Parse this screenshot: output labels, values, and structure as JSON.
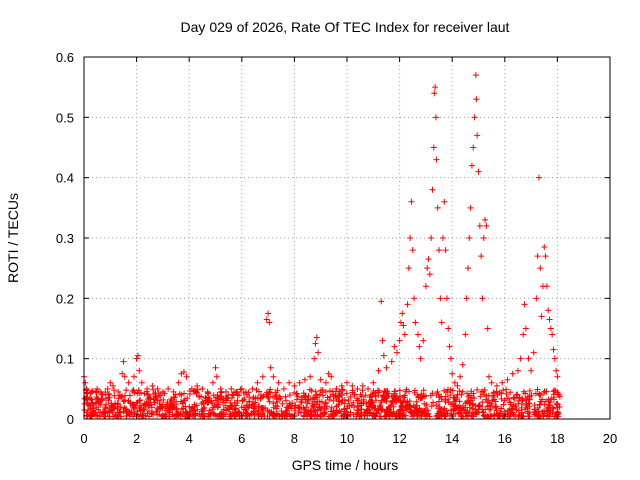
{
  "chart_data": {
    "type": "scatter",
    "title": "Day 029 of 2026, Rate Of TEC Index for receiver laut",
    "xlabel": "GPS time / hours",
    "ylabel": "ROTI / TECUs",
    "xlim": [
      0,
      20
    ],
    "ylim": [
      0,
      0.6
    ],
    "xticks": [
      "0",
      "2",
      "4",
      "6",
      "8",
      "10",
      "12",
      "14",
      "16",
      "18",
      "20"
    ],
    "yticks": [
      "0",
      "0.1",
      "0.2",
      "0.3",
      "0.4",
      "0.5",
      "0.6"
    ],
    "grid": true,
    "marker": "+",
    "color": "#ff0000",
    "series": [
      {
        "name": "ROTI",
        "points": [
          [
            0.0,
            0.07
          ],
          [
            0.05,
            0.06
          ],
          [
            0.1,
            0.05
          ],
          [
            0.3,
            0.045
          ],
          [
            0.5,
            0.05
          ],
          [
            0.7,
            0.04
          ],
          [
            0.9,
            0.05
          ],
          [
            1.0,
            0.06
          ],
          [
            1.1,
            0.055
          ],
          [
            1.3,
            0.045
          ],
          [
            1.45,
            0.075
          ],
          [
            1.5,
            0.095
          ],
          [
            1.55,
            0.07
          ],
          [
            1.7,
            0.06
          ],
          [
            1.9,
            0.07
          ],
          [
            2.0,
            0.1
          ],
          [
            2.05,
            0.105
          ],
          [
            2.1,
            0.08
          ],
          [
            2.2,
            0.06
          ],
          [
            2.4,
            0.05
          ],
          [
            2.6,
            0.055
          ],
          [
            2.8,
            0.05
          ],
          [
            3.0,
            0.045
          ],
          [
            3.2,
            0.05
          ],
          [
            3.4,
            0.045
          ],
          [
            3.6,
            0.06
          ],
          [
            3.7,
            0.075
          ],
          [
            3.8,
            0.078
          ],
          [
            3.9,
            0.07
          ],
          [
            4.1,
            0.05
          ],
          [
            4.3,
            0.055
          ],
          [
            4.5,
            0.05
          ],
          [
            4.7,
            0.045
          ],
          [
            4.9,
            0.06
          ],
          [
            5.0,
            0.085
          ],
          [
            5.05,
            0.07
          ],
          [
            5.2,
            0.05
          ],
          [
            5.4,
            0.045
          ],
          [
            5.6,
            0.05
          ],
          [
            5.8,
            0.045
          ],
          [
            6.0,
            0.05
          ],
          [
            6.2,
            0.04
          ],
          [
            6.4,
            0.05
          ],
          [
            6.6,
            0.06
          ],
          [
            6.8,
            0.07
          ],
          [
            6.95,
            0.165
          ],
          [
            7.0,
            0.175
          ],
          [
            7.05,
            0.16
          ],
          [
            7.1,
            0.085
          ],
          [
            7.2,
            0.07
          ],
          [
            7.4,
            0.06
          ],
          [
            7.6,
            0.05
          ],
          [
            7.8,
            0.06
          ],
          [
            8.0,
            0.055
          ],
          [
            8.2,
            0.06
          ],
          [
            8.4,
            0.065
          ],
          [
            8.6,
            0.07
          ],
          [
            8.75,
            0.1
          ],
          [
            8.8,
            0.125
          ],
          [
            8.85,
            0.135
          ],
          [
            8.9,
            0.11
          ],
          [
            9.0,
            0.065
          ],
          [
            9.2,
            0.06
          ],
          [
            9.3,
            0.075
          ],
          [
            9.4,
            0.07
          ],
          [
            9.6,
            0.05
          ],
          [
            9.8,
            0.055
          ],
          [
            10.0,
            0.06
          ],
          [
            10.2,
            0.055
          ],
          [
            10.4,
            0.05
          ],
          [
            10.6,
            0.055
          ],
          [
            10.8,
            0.05
          ],
          [
            11.0,
            0.06
          ],
          [
            11.2,
            0.08
          ],
          [
            11.3,
            0.195
          ],
          [
            11.35,
            0.13
          ],
          [
            11.4,
            0.105
          ],
          [
            11.5,
            0.085
          ],
          [
            11.7,
            0.095
          ],
          [
            11.8,
            0.12
          ],
          [
            11.9,
            0.11
          ],
          [
            12.0,
            0.13
          ],
          [
            12.05,
            0.16
          ],
          [
            12.1,
            0.175
          ],
          [
            12.15,
            0.155
          ],
          [
            12.2,
            0.14
          ],
          [
            12.3,
            0.19
          ],
          [
            12.35,
            0.25
          ],
          [
            12.4,
            0.3
          ],
          [
            12.45,
            0.36
          ],
          [
            12.5,
            0.28
          ],
          [
            12.55,
            0.2
          ],
          [
            12.6,
            0.16
          ],
          [
            12.7,
            0.14
          ],
          [
            12.75,
            0.12
          ],
          [
            12.8,
            0.1
          ],
          [
            12.9,
            0.13
          ],
          [
            13.0,
            0.22
          ],
          [
            13.05,
            0.25
          ],
          [
            13.1,
            0.265
          ],
          [
            13.15,
            0.24
          ],
          [
            13.2,
            0.3
          ],
          [
            13.25,
            0.38
          ],
          [
            13.3,
            0.45
          ],
          [
            13.32,
            0.54
          ],
          [
            13.35,
            0.55
          ],
          [
            13.38,
            0.5
          ],
          [
            13.4,
            0.43
          ],
          [
            13.45,
            0.35
          ],
          [
            13.5,
            0.28
          ],
          [
            13.55,
            0.2
          ],
          [
            13.6,
            0.16
          ],
          [
            13.65,
            0.3
          ],
          [
            13.7,
            0.36
          ],
          [
            13.75,
            0.28
          ],
          [
            13.8,
            0.2
          ],
          [
            13.85,
            0.15
          ],
          [
            13.9,
            0.12
          ],
          [
            13.95,
            0.1
          ],
          [
            14.0,
            0.075
          ],
          [
            14.1,
            0.06
          ],
          [
            14.2,
            0.055
          ],
          [
            14.3,
            0.07
          ],
          [
            14.4,
            0.09
          ],
          [
            14.5,
            0.14
          ],
          [
            14.55,
            0.2
          ],
          [
            14.6,
            0.25
          ],
          [
            14.65,
            0.3
          ],
          [
            14.7,
            0.35
          ],
          [
            14.75,
            0.42
          ],
          [
            14.8,
            0.45
          ],
          [
            14.85,
            0.5
          ],
          [
            14.9,
            0.57
          ],
          [
            14.92,
            0.53
          ],
          [
            14.95,
            0.47
          ],
          [
            15.0,
            0.41
          ],
          [
            15.05,
            0.32
          ],
          [
            15.1,
            0.27
          ],
          [
            15.15,
            0.2
          ],
          [
            15.2,
            0.3
          ],
          [
            15.25,
            0.33
          ],
          [
            15.3,
            0.32
          ],
          [
            15.35,
            0.15
          ],
          [
            15.4,
            0.07
          ],
          [
            15.5,
            0.06
          ],
          [
            15.7,
            0.055
          ],
          [
            15.9,
            0.06
          ],
          [
            16.1,
            0.065
          ],
          [
            16.3,
            0.075
          ],
          [
            16.5,
            0.08
          ],
          [
            16.6,
            0.1
          ],
          [
            16.7,
            0.14
          ],
          [
            16.75,
            0.19
          ],
          [
            16.8,
            0.15
          ],
          [
            16.9,
            0.1
          ],
          [
            17.0,
            0.08
          ],
          [
            17.1,
            0.11
          ],
          [
            17.2,
            0.2
          ],
          [
            17.25,
            0.27
          ],
          [
            17.3,
            0.4
          ],
          [
            17.35,
            0.25
          ],
          [
            17.4,
            0.17
          ],
          [
            17.45,
            0.22
          ],
          [
            17.5,
            0.285
          ],
          [
            17.55,
            0.27
          ],
          [
            17.6,
            0.22
          ],
          [
            17.65,
            0.18
          ],
          [
            17.7,
            0.165
          ],
          [
            17.75,
            0.15
          ],
          [
            17.8,
            0.14
          ],
          [
            17.85,
            0.115
          ],
          [
            17.9,
            0.1
          ],
          [
            17.95,
            0.08
          ],
          [
            18.0,
            0.07
          ],
          [
            18.05,
            0.04
          ]
        ]
      }
    ],
    "baseline_band": {
      "x_range": [
        0,
        18.1
      ],
      "y_range": [
        0,
        0.04
      ]
    }
  }
}
